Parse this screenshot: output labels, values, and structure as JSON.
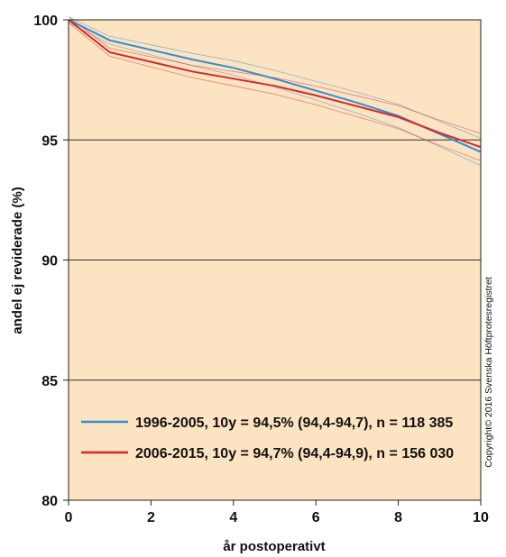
{
  "chart_data": {
    "type": "line",
    "title": "",
    "xlabel": "år postoperativt",
    "ylabel": "andel ej reviderade (%)",
    "xlim": [
      0,
      10
    ],
    "ylim": [
      80,
      100
    ],
    "x_ticks": [
      "0",
      "2",
      "4",
      "6",
      "8",
      "10"
    ],
    "y_ticks": [
      "80",
      "85",
      "90",
      "95",
      "100"
    ],
    "grid": "horizontal",
    "background_color": "#fce3c2",
    "legend_position": "bottom-left",
    "series": [
      {
        "name": "1996-2005, 10y = 94,5% (94,4-94,7), n = 118 385",
        "color": "#2f8fd0",
        "x": [
          0,
          1,
          2,
          3,
          4,
          5,
          6,
          7,
          8,
          9,
          10
        ],
        "y": [
          100,
          99.15,
          98.75,
          98.35,
          98.0,
          97.55,
          97.05,
          96.55,
          96.0,
          95.25,
          94.5
        ]
      },
      {
        "name": "2006-2015, 10y = 94,7% (94,4-94,9), n = 156 030",
        "color": "#d82828",
        "x": [
          0,
          1,
          2,
          3,
          4,
          5,
          6,
          7,
          8,
          9,
          10
        ],
        "y": [
          100,
          98.65,
          98.25,
          97.85,
          97.55,
          97.25,
          96.85,
          96.4,
          95.95,
          95.3,
          94.7
        ]
      }
    ]
  },
  "copyright": "Copyright© 2016 Svenska Höftprotesregistret"
}
